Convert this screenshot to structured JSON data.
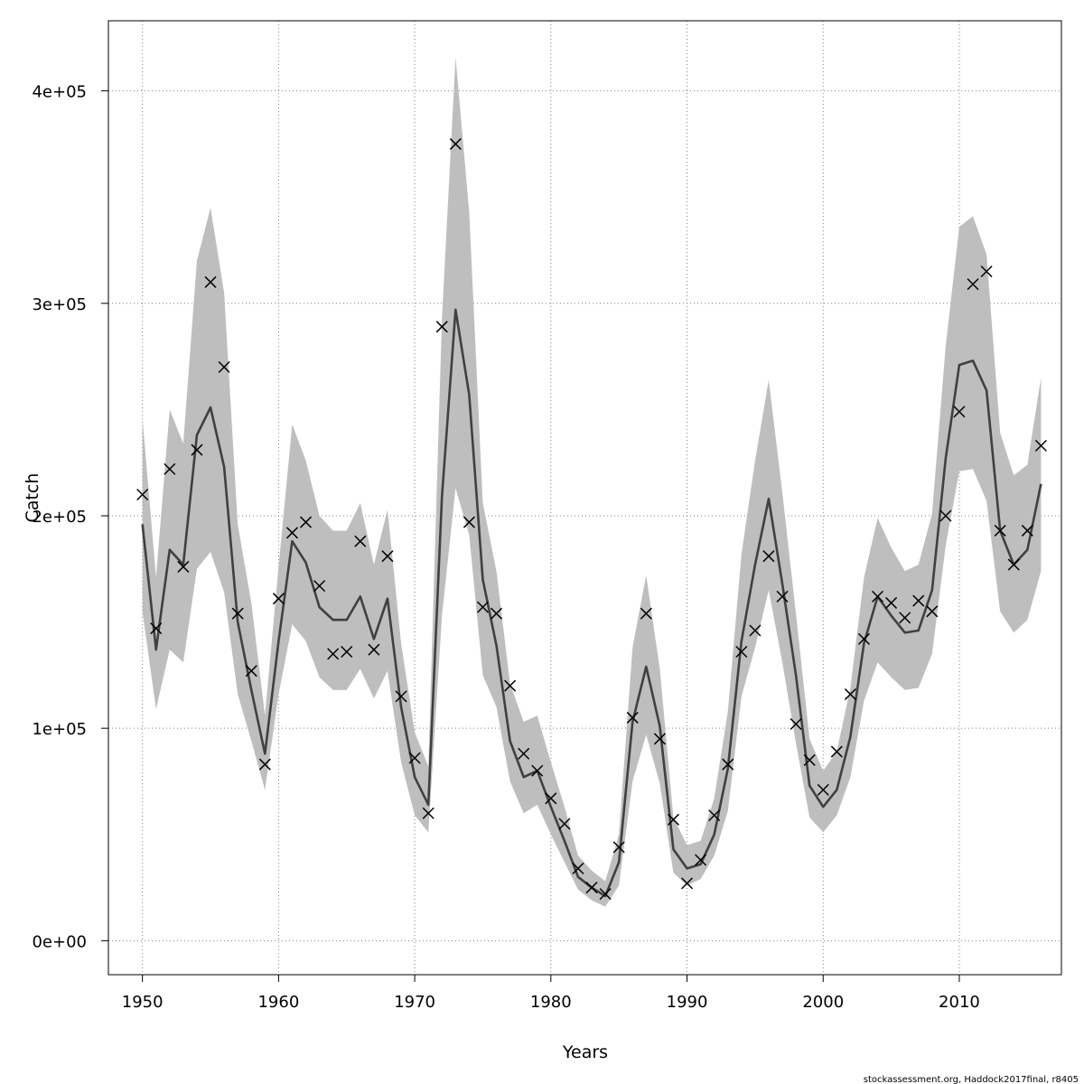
{
  "chart_data": {
    "type": "line",
    "xlabel": "Years",
    "ylabel": "Catch",
    "xlim": [
      1947.5,
      2017.5
    ],
    "ylim": [
      -16000,
      433000
    ],
    "x_ticks": [
      1950,
      1960,
      1970,
      1980,
      1990,
      2000,
      2010
    ],
    "x_tick_labels": [
      "1950",
      "1960",
      "1970",
      "1980",
      "1990",
      "2000",
      "2010"
    ],
    "y_ticks": [
      0,
      100000,
      200000,
      300000,
      400000
    ],
    "y_tick_labels": [
      "0e+00",
      "1e+05",
      "2e+05",
      "3e+05",
      "4e+05"
    ],
    "grid": true,
    "years": [
      1950,
      1951,
      1952,
      1953,
      1954,
      1955,
      1956,
      1957,
      1958,
      1959,
      1960,
      1961,
      1962,
      1963,
      1964,
      1965,
      1966,
      1967,
      1968,
      1969,
      1970,
      1971,
      1972,
      1973,
      1974,
      1975,
      1976,
      1977,
      1978,
      1979,
      1980,
      1981,
      1982,
      1983,
      1984,
      1985,
      1986,
      1987,
      1988,
      1989,
      1990,
      1991,
      1992,
      1993,
      1994,
      1995,
      1996,
      1997,
      1998,
      1999,
      2000,
      2001,
      2002,
      2003,
      2004,
      2005,
      2006,
      2007,
      2008,
      2009,
      2010,
      2011,
      2012,
      2013,
      2014,
      2015,
      2016
    ],
    "series": [
      {
        "role": "estimate",
        "values": [
          196000,
          137000,
          184000,
          177000,
          238000,
          251000,
          223000,
          150000,
          118000,
          88000,
          141000,
          188000,
          178000,
          157000,
          151000,
          151000,
          162000,
          142000,
          161000,
          110000,
          77000,
          64000,
          209000,
          297000,
          257000,
          170000,
          139000,
          94000,
          77000,
          80000,
          63000,
          47000,
          30000,
          25000,
          21000,
          37000,
          103000,
          129000,
          101000,
          43000,
          34000,
          36000,
          50000,
          81000,
          141000,
          177000,
          208000,
          168000,
          125000,
          73000,
          63000,
          71000,
          96000,
          140000,
          162000,
          153000,
          145000,
          146000,
          165000,
          227000,
          271000,
          273000,
          259000,
          193000,
          177000,
          184000,
          215000
        ]
      },
      {
        "role": "ci_upper",
        "values": [
          246000,
          171000,
          250000,
          234000,
          320000,
          345000,
          305000,
          196000,
          159000,
          106000,
          176000,
          243000,
          226000,
          200000,
          193000,
          193000,
          206000,
          177000,
          203000,
          140000,
          98000,
          82000,
          293000,
          416000,
          343000,
          206000,
          174000,
          121000,
          103000,
          106000,
          84000,
          63000,
          40000,
          33000,
          28000,
          50000,
          138000,
          172000,
          128000,
          58000,
          45000,
          47000,
          67000,
          108000,
          182000,
          226000,
          264000,
          211000,
          154000,
          95000,
          80000,
          89000,
          119000,
          171000,
          199000,
          185000,
          174000,
          177000,
          201000,
          280000,
          336000,
          341000,
          323000,
          239000,
          219000,
          224000,
          265000
        ]
      },
      {
        "role": "ci_lower",
        "values": [
          155000,
          109000,
          137000,
          131000,
          175000,
          183000,
          164000,
          116000,
          94000,
          71000,
          116000,
          149000,
          141000,
          124000,
          118000,
          118000,
          128000,
          114000,
          127000,
          84000,
          59000,
          51000,
          153000,
          213000,
          191000,
          125000,
          110000,
          75000,
          60000,
          64000,
          50000,
          37000,
          24000,
          19000,
          16000,
          26000,
          75000,
          97000,
          74000,
          32000,
          26000,
          29000,
          40000,
          61000,
          115000,
          138000,
          165000,
          131000,
          93000,
          58000,
          51000,
          59000,
          77000,
          113000,
          131000,
          124000,
          118000,
          119000,
          135000,
          186000,
          221000,
          222000,
          207000,
          155000,
          145000,
          151000,
          174000
        ]
      },
      {
        "role": "observed",
        "values": [
          210000,
          147000,
          222000,
          176000,
          231000,
          310000,
          270000,
          154000,
          127000,
          83000,
          161000,
          192000,
          197000,
          167000,
          135000,
          136000,
          188000,
          137000,
          181000,
          115000,
          86000,
          60000,
          289000,
          375000,
          197000,
          157000,
          154000,
          120000,
          88000,
          80000,
          67000,
          55000,
          34000,
          25000,
          22000,
          44000,
          105000,
          154000,
          95000,
          57000,
          27000,
          38000,
          59000,
          83000,
          136000,
          146000,
          181000,
          162000,
          102000,
          85000,
          71000,
          89000,
          116000,
          142000,
          162000,
          159000,
          152000,
          160000,
          155000,
          200000,
          249000,
          309000,
          315000,
          193000,
          177000,
          193000,
          233000
        ]
      }
    ]
  },
  "colors": {
    "ci_band": "#bebebe",
    "estimate_line": "#404040",
    "marker": "#000000",
    "grid": "#808080",
    "frame": "#000000"
  },
  "marker_symbol": "x",
  "credit": "stockassessment.org, Haddock2017final, r8405"
}
